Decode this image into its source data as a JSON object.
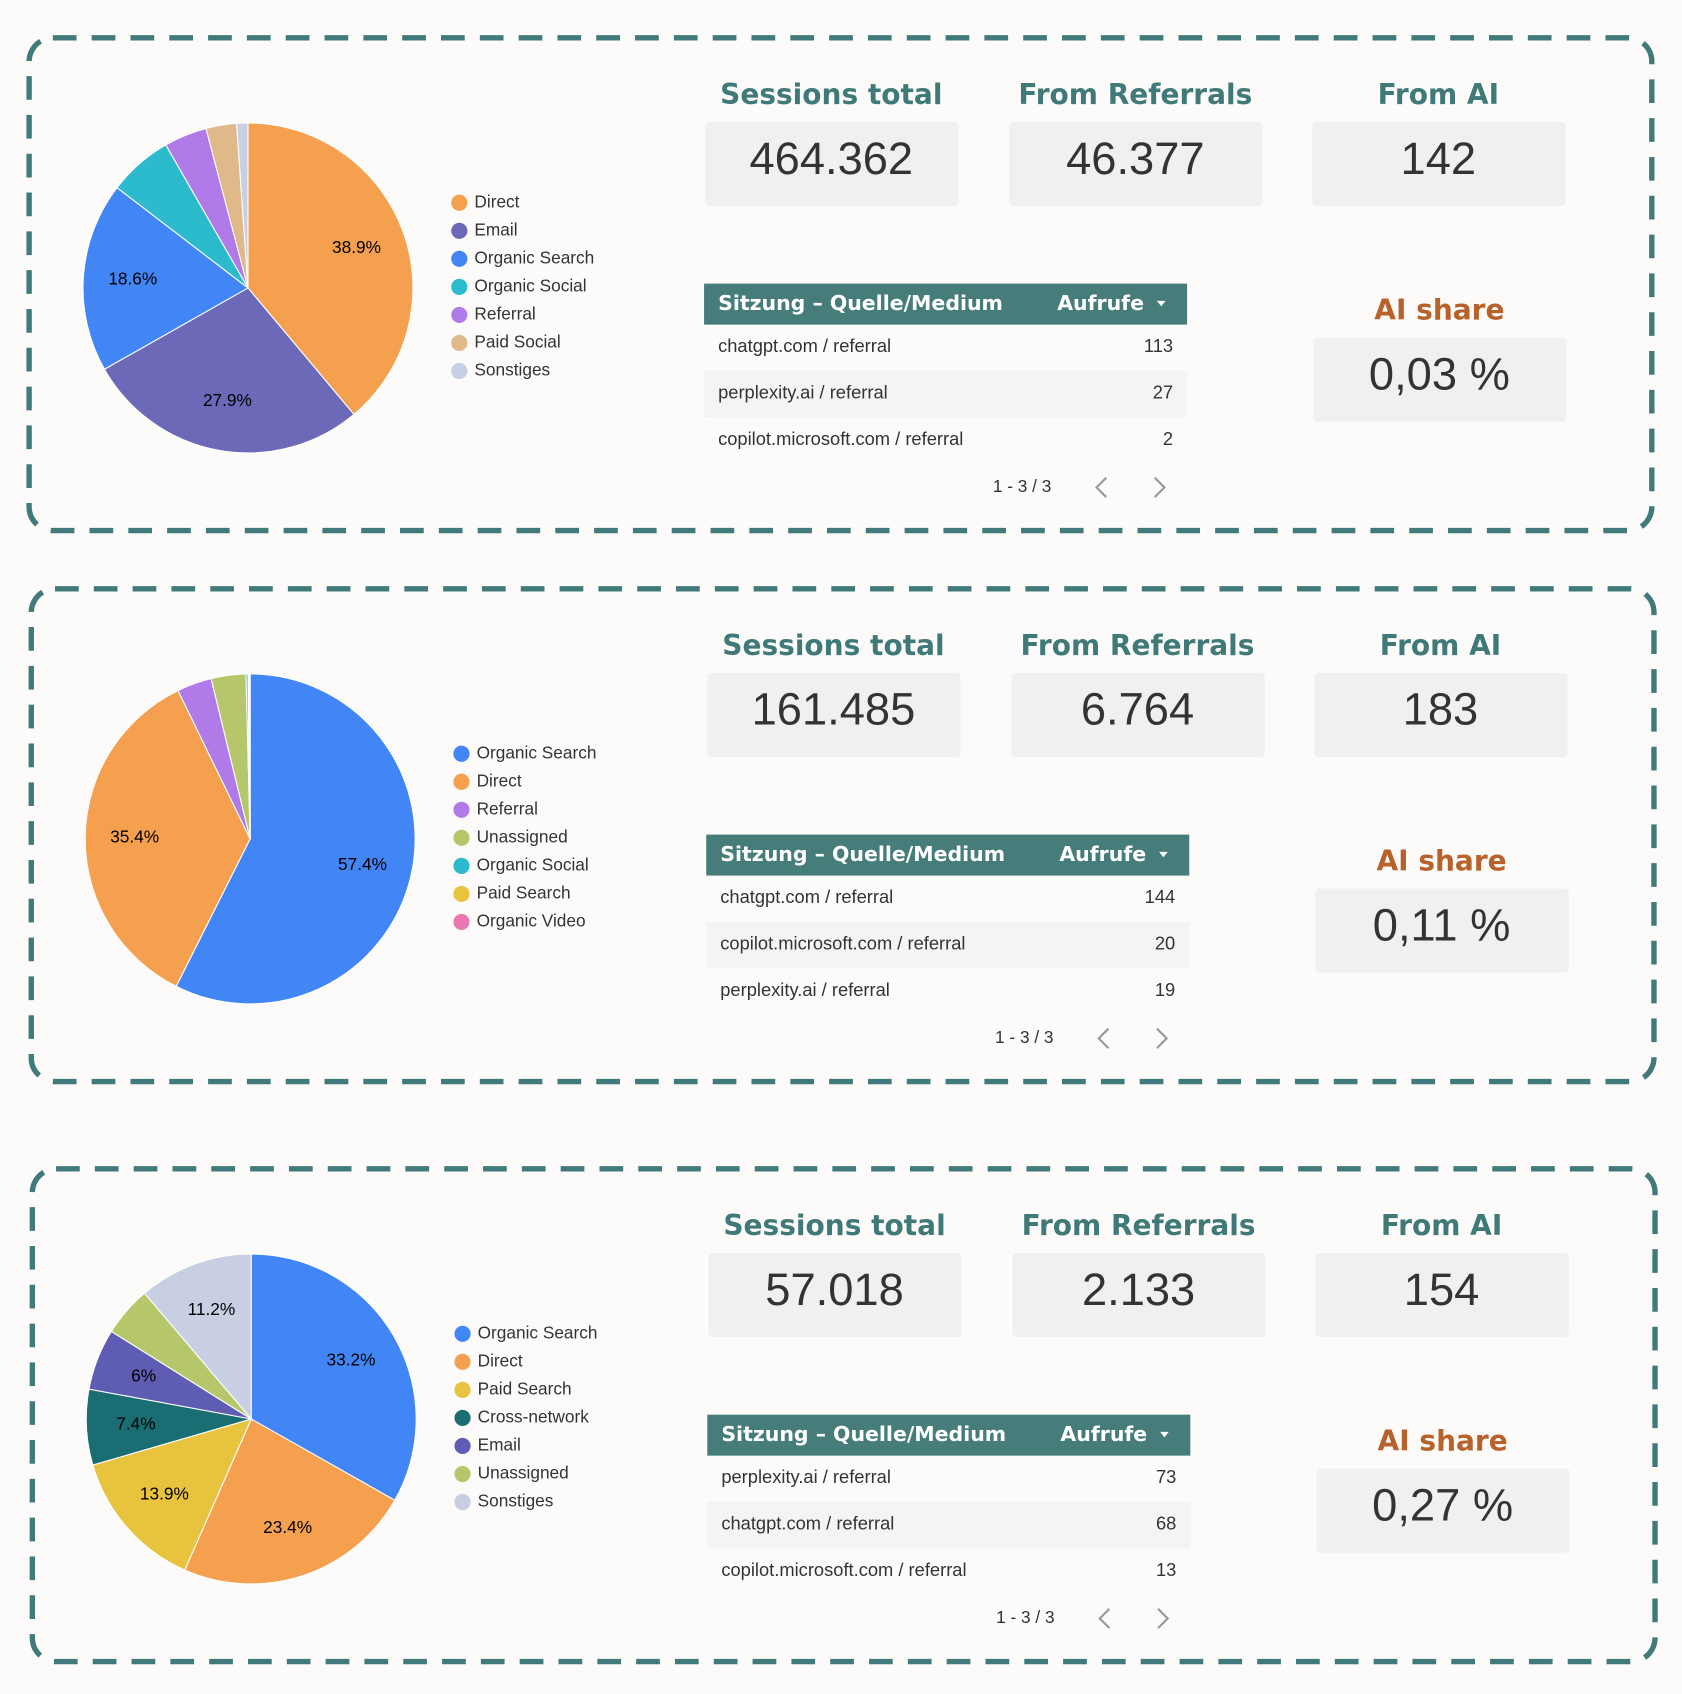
{
  "chart_data": [
    {
      "type": "pie",
      "categories": [
        "Direct",
        "Email",
        "Organic Search",
        "Organic Social",
        "Referral",
        "Paid Social",
        "Sonstiges"
      ],
      "values": [
        38.9,
        27.9,
        18.6,
        6.3,
        4.2,
        3.0,
        1.1
      ],
      "value_labels": [
        "38.9%",
        "27.9%",
        "18.6%",
        null,
        null,
        null,
        null
      ],
      "colors": [
        "#f4a04f",
        "#6b69b8",
        "#4285f4",
        "#2bbbcc",
        "#b07be8",
        "#dfb98a",
        "#c8cfe3"
      ]
    },
    {
      "type": "pie",
      "categories": [
        "Organic Search",
        "Direct",
        "Referral",
        "Unassigned",
        "Organic Social",
        "Paid Search",
        "Organic Video"
      ],
      "values": [
        57.4,
        35.4,
        3.4,
        3.4,
        0.2,
        0.1,
        0.1
      ],
      "value_labels": [
        "57.4%",
        "35.4%",
        null,
        null,
        null,
        null,
        null
      ],
      "colors": [
        "#4285f4",
        "#f4a04f",
        "#b07be8",
        "#b5c76a",
        "#2bbbcc",
        "#e8c33e",
        "#e879b0"
      ]
    },
    {
      "type": "pie",
      "categories": [
        "Organic Search",
        "Direct",
        "Paid Search",
        "Cross-network",
        "Email",
        "Unassigned",
        "Sonstiges"
      ],
      "values": [
        33.2,
        23.4,
        13.9,
        7.4,
        6,
        4.9,
        11.2
      ],
      "value_labels": [
        "33.2%",
        "23.4%",
        "13.9%",
        "7.4%",
        "6%",
        null,
        "11.2%"
      ],
      "colors": [
        "#4285f4",
        "#f4a04f",
        "#e8c33e",
        "#1a6e73",
        "#5f5db3",
        "#b5c76a",
        "#c8cfe3"
      ]
    }
  ],
  "panels": [
    {
      "kpis": [
        {
          "title": "Sessions total",
          "value": "464.362"
        },
        {
          "title": "From Referrals",
          "value": "46.377"
        },
        {
          "title": "From AI",
          "value": "142"
        }
      ],
      "table": {
        "columns": [
          "Sitzung – Quelle/Medium",
          "Aufrufe"
        ],
        "rows": [
          [
            "chatgpt.com / referral",
            113
          ],
          [
            "perplexity.ai / referral",
            27
          ],
          [
            "copilot.microsoft.com / referral",
            2
          ]
        ],
        "pagination": "1 - 3 / 3"
      },
      "ai_share": {
        "title": "AI share",
        "value": "0,03 %"
      }
    },
    {
      "kpis": [
        {
          "title": "Sessions total",
          "value": "161.485"
        },
        {
          "title": "From Referrals",
          "value": "6.764"
        },
        {
          "title": "From AI",
          "value": "183"
        }
      ],
      "table": {
        "columns": [
          "Sitzung – Quelle/Medium",
          "Aufrufe"
        ],
        "rows": [
          [
            "chatgpt.com / referral",
            144
          ],
          [
            "copilot.microsoft.com / referral",
            20
          ],
          [
            "perplexity.ai / referral",
            19
          ]
        ],
        "pagination": "1 - 3 / 3"
      },
      "ai_share": {
        "title": "AI share",
        "value": "0,11 %"
      }
    },
    {
      "kpis": [
        {
          "title": "Sessions total",
          "value": "57.018"
        },
        {
          "title": "From Referrals",
          "value": "2.133"
        },
        {
          "title": "From AI",
          "value": "154"
        }
      ],
      "table": {
        "columns": [
          "Sitzung – Quelle/Medium",
          "Aufrufe"
        ],
        "rows": [
          [
            "perplexity.ai / referral",
            73
          ],
          [
            "chatgpt.com / referral",
            68
          ],
          [
            "copilot.microsoft.com / referral",
            13
          ]
        ],
        "pagination": "1 - 3 / 3"
      },
      "ai_share": {
        "title": "AI share",
        "value": "0,27 %"
      }
    }
  ]
}
